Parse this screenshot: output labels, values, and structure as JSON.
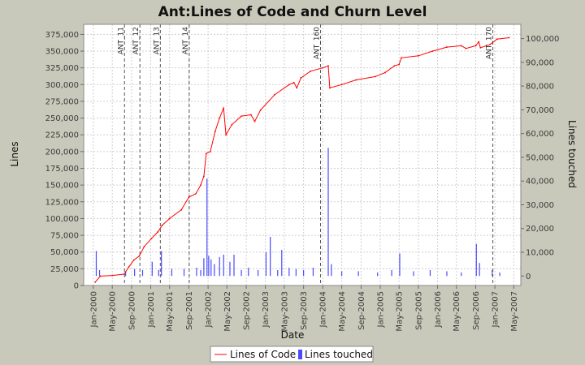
{
  "chart_data": {
    "type": "line",
    "title": "Ant:Lines of Code and Churn Level",
    "xlabel": "Date",
    "ylabel_left": "Lines",
    "ylabel_right": "Lines touched",
    "ylim_left": [
      0,
      390000
    ],
    "ylim_right": [
      -4000,
      106000
    ],
    "xlim": [
      "1999-11-01",
      "2007-06-15"
    ],
    "grid": true,
    "legend_position": "bottom",
    "x_ticks": [
      "Jan-2000",
      "May-2000",
      "Sep-2000",
      "Jan-2001",
      "May-2001",
      "Sep-2001",
      "Jan-2002",
      "May-2002",
      "Sep-2002",
      "Jan-2003",
      "May-2003",
      "Sep-2003",
      "Jan-2004",
      "May-2004",
      "Sep-2004",
      "Jan-2005",
      "May-2005",
      "Sep-2005",
      "Jan-2006",
      "May-2006",
      "Sep-2006",
      "Jan-2007",
      "May-2007"
    ],
    "y_ticks_left": [
      "0",
      "25,000",
      "50,000",
      "75,000",
      "100,000",
      "125,000",
      "150,000",
      "175,000",
      "200,000",
      "225,000",
      "250,000",
      "275,000",
      "300,000",
      "325,000",
      "350,000",
      "375,000"
    ],
    "y_ticks_right": [
      "0",
      "10,000",
      "20,000",
      "30,000",
      "40,000",
      "50,000",
      "60,000",
      "70,000",
      "80,000",
      "90,000",
      "100,000"
    ],
    "release_markers": [
      {
        "label": "ANT_11",
        "date": "2000-07-18"
      },
      {
        "label": "ANT_12",
        "date": "2000-10-24"
      },
      {
        "label": "ANT_13",
        "date": "2001-03-03"
      },
      {
        "label": "ANT_14",
        "date": "2001-09-03"
      },
      {
        "label": "ANT_160",
        "date": "2003-12-18"
      },
      {
        "label": "ANT_170",
        "date": "2006-12-19"
      }
    ],
    "series": [
      {
        "name": "Lines of Code",
        "color": "#ff0000",
        "axis": "left",
        "points": [
          [
            "2000-01-13",
            5000
          ],
          [
            "2000-02-15",
            14000
          ],
          [
            "2000-05-01",
            15000
          ],
          [
            "2000-07-15",
            17000
          ],
          [
            "2000-08-15",
            28000
          ],
          [
            "2000-09-15",
            38000
          ],
          [
            "2000-10-20",
            44000
          ],
          [
            "2000-11-20",
            58000
          ],
          [
            "2001-01-05",
            70000
          ],
          [
            "2001-02-15",
            80000
          ],
          [
            "2001-03-15",
            90000
          ],
          [
            "2001-05-01",
            100000
          ],
          [
            "2001-07-15",
            113000
          ],
          [
            "2001-09-01",
            132000
          ],
          [
            "2001-10-15",
            137000
          ],
          [
            "2001-11-15",
            150000
          ],
          [
            "2001-12-05",
            163000
          ],
          [
            "2001-12-20",
            197000
          ],
          [
            "2002-01-15",
            200000
          ],
          [
            "2002-02-15",
            230000
          ],
          [
            "2002-03-15",
            250000
          ],
          [
            "2002-04-10",
            265000
          ],
          [
            "2002-04-25",
            225000
          ],
          [
            "2002-06-01",
            240000
          ],
          [
            "2002-08-01",
            253000
          ],
          [
            "2002-10-01",
            255000
          ],
          [
            "2002-10-25",
            245000
          ],
          [
            "2002-12-01",
            262000
          ],
          [
            "2003-03-01",
            285000
          ],
          [
            "2003-06-01",
            300000
          ],
          [
            "2003-07-01",
            303000
          ],
          [
            "2003-07-20",
            295000
          ],
          [
            "2003-08-15",
            310000
          ],
          [
            "2003-10-15",
            320000
          ],
          [
            "2004-01-01",
            325000
          ],
          [
            "2004-02-05",
            328000
          ],
          [
            "2004-02-15",
            295000
          ],
          [
            "2004-05-01",
            300000
          ],
          [
            "2004-08-01",
            307000
          ],
          [
            "2004-12-01",
            312000
          ],
          [
            "2005-02-01",
            318000
          ],
          [
            "2005-04-01",
            328000
          ],
          [
            "2005-05-01",
            330000
          ],
          [
            "2005-05-15",
            340000
          ],
          [
            "2005-09-01",
            343000
          ],
          [
            "2005-12-01",
            350000
          ],
          [
            "2006-03-01",
            356000
          ],
          [
            "2006-06-01",
            358000
          ],
          [
            "2006-07-01",
            354000
          ],
          [
            "2006-09-01",
            358000
          ],
          [
            "2006-09-20",
            364000
          ],
          [
            "2006-10-01",
            355000
          ],
          [
            "2006-12-01",
            360000
          ],
          [
            "2007-01-15",
            368000
          ],
          [
            "2007-04-01",
            370000
          ]
        ]
      },
      {
        "name": "Lines touched",
        "color": "#4a4aff",
        "axis": "right",
        "type": "bar",
        "points": [
          [
            "2000-01-20",
            10500
          ],
          [
            "2000-02-10",
            2500
          ],
          [
            "2000-07-25",
            2000
          ],
          [
            "2000-09-20",
            3000
          ],
          [
            "2000-11-10",
            2500
          ],
          [
            "2001-01-10",
            6000
          ],
          [
            "2001-02-20",
            2500
          ],
          [
            "2001-03-10",
            10500
          ],
          [
            "2001-05-15",
            3000
          ],
          [
            "2001-08-01",
            3000
          ],
          [
            "2001-10-20",
            3500
          ],
          [
            "2001-11-15",
            2500
          ],
          [
            "2001-12-05",
            7500
          ],
          [
            "2001-12-25",
            41000
          ],
          [
            "2002-01-05",
            8500
          ],
          [
            "2002-01-20",
            7000
          ],
          [
            "2002-02-10",
            5000
          ],
          [
            "2002-03-15",
            8000
          ],
          [
            "2002-04-10",
            9000
          ],
          [
            "2002-05-20",
            6000
          ],
          [
            "2002-06-15",
            9000
          ],
          [
            "2002-08-01",
            2500
          ],
          [
            "2002-09-15",
            3500
          ],
          [
            "2002-11-15",
            2500
          ],
          [
            "2003-01-05",
            10000
          ],
          [
            "2003-02-01",
            16500
          ],
          [
            "2003-03-20",
            2500
          ],
          [
            "2003-04-15",
            11000
          ],
          [
            "2003-06-01",
            3500
          ],
          [
            "2003-07-15",
            3000
          ],
          [
            "2003-09-01",
            2500
          ],
          [
            "2003-11-01",
            3500
          ],
          [
            "2004-02-05",
            54000
          ],
          [
            "2004-02-25",
            5000
          ],
          [
            "2004-05-01",
            2000
          ],
          [
            "2004-08-15",
            2000
          ],
          [
            "2004-12-15",
            1500
          ],
          [
            "2005-03-15",
            2500
          ],
          [
            "2005-05-05",
            9500
          ],
          [
            "2005-08-01",
            2000
          ],
          [
            "2005-11-15",
            2500
          ],
          [
            "2006-03-01",
            2000
          ],
          [
            "2006-06-01",
            1500
          ],
          [
            "2006-09-05",
            13500
          ],
          [
            "2006-09-25",
            5500
          ],
          [
            "2006-12-15",
            2500
          ],
          [
            "2007-02-01",
            1500
          ]
        ]
      }
    ]
  }
}
